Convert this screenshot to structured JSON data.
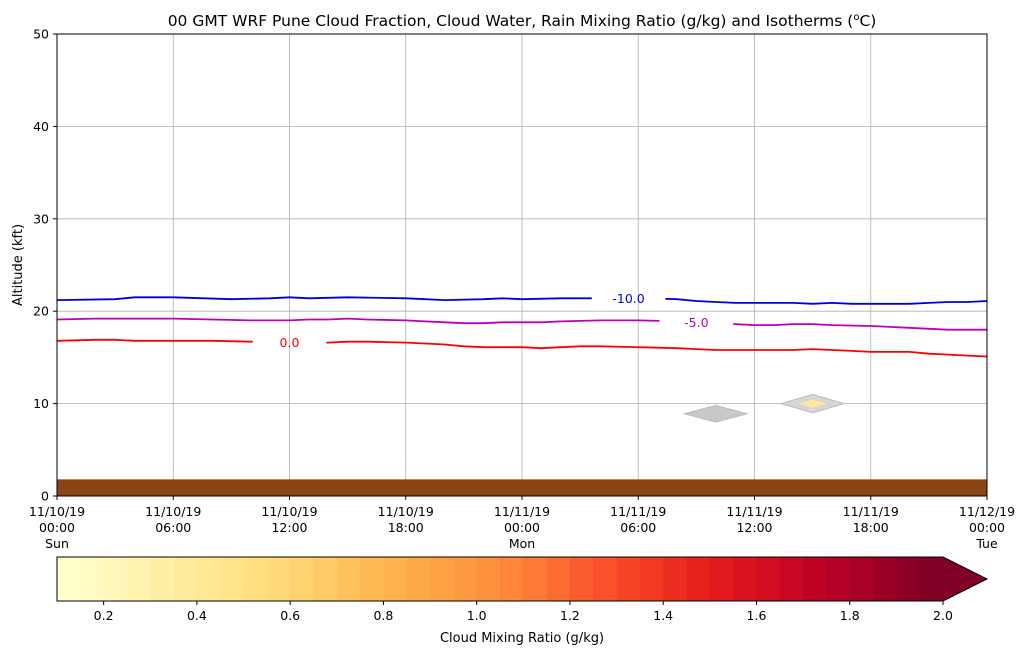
{
  "chart_data": {
    "type": "contour",
    "title": "00 GMT WRF Pune Cloud Fraction, Cloud Water, Rain Mixing Ratio (g/kg) and Isotherms (",
    "title_sup": "o",
    "title_tail": "C)",
    "ylabel": "Altitude (kft)",
    "ylim": [
      0,
      50
    ],
    "yticks": [
      0,
      10,
      20,
      30,
      40,
      50
    ],
    "xlim": [
      0,
      48
    ],
    "x_unit": "hours from 11/10/19 00:00",
    "grid": true,
    "xticks": [
      {
        "x": 0,
        "date": "11/10/19",
        "time": "00:00",
        "day": "Sun"
      },
      {
        "x": 6,
        "date": "11/10/19",
        "time": "06:00",
        "day": ""
      },
      {
        "x": 12,
        "date": "11/10/19",
        "time": "12:00",
        "day": ""
      },
      {
        "x": 18,
        "date": "11/10/19",
        "time": "18:00",
        "day": ""
      },
      {
        "x": 24,
        "date": "11/11/19",
        "time": "00:00",
        "day": "Mon"
      },
      {
        "x": 30,
        "date": "11/11/19",
        "time": "06:00",
        "day": ""
      },
      {
        "x": 36,
        "date": "11/11/19",
        "time": "12:00",
        "day": ""
      },
      {
        "x": 42,
        "date": "11/11/19",
        "time": "18:00",
        "day": ""
      },
      {
        "x": 48,
        "date": "11/12/19",
        "time": "00:00",
        "day": "Tue"
      }
    ],
    "ground": {
      "from": 0,
      "to": 1.8,
      "color": "#8B4513"
    },
    "isotherms": [
      {
        "label": "-10.0",
        "color": "#0000DD",
        "label_x": 29.5,
        "x": [
          0,
          3,
          4,
          6,
          9,
          11,
          12,
          13,
          15,
          18,
          19,
          20,
          22,
          23,
          24,
          26,
          28,
          30,
          32,
          33,
          34,
          35,
          36,
          37,
          38,
          39,
          40,
          41,
          42,
          43,
          44,
          45,
          46,
          47,
          48
        ],
        "y": [
          21.2,
          21.3,
          21.5,
          21.5,
          21.3,
          21.4,
          21.5,
          21.4,
          21.5,
          21.4,
          21.3,
          21.2,
          21.3,
          21.4,
          21.3,
          21.4,
          21.4,
          21.4,
          21.3,
          21.1,
          21.0,
          20.9,
          20.9,
          20.9,
          20.9,
          20.8,
          20.9,
          20.8,
          20.8,
          20.8,
          20.8,
          20.9,
          21.0,
          21.0,
          21.1
        ]
      },
      {
        "label": "-5.0",
        "color": "#BB00BB",
        "label_x": 33,
        "x": [
          0,
          2,
          4,
          6,
          8,
          10,
          12,
          13,
          14,
          15,
          16,
          18,
          19,
          20,
          21,
          22,
          23,
          24,
          25,
          26,
          28,
          30,
          32,
          34,
          35,
          36,
          37,
          38,
          39,
          40,
          42,
          44,
          45,
          46,
          48
        ],
        "y": [
          19.1,
          19.2,
          19.2,
          19.2,
          19.1,
          19.0,
          19.0,
          19.1,
          19.1,
          19.2,
          19.1,
          19.0,
          18.9,
          18.8,
          18.7,
          18.7,
          18.8,
          18.8,
          18.8,
          18.9,
          19.0,
          19.0,
          18.9,
          18.7,
          18.6,
          18.5,
          18.5,
          18.6,
          18.6,
          18.5,
          18.4,
          18.2,
          18.1,
          18.0,
          18.0
        ]
      },
      {
        "label": "0.0",
        "color": "#FF0000",
        "label_x": 12,
        "x": [
          0,
          2,
          3,
          4,
          6,
          8,
          10,
          12,
          14,
          15,
          16,
          18,
          19,
          20,
          21,
          22,
          23,
          24,
          25,
          26,
          27,
          28,
          30,
          32,
          33,
          34,
          35,
          36,
          37,
          38,
          39,
          40,
          41,
          42,
          43,
          44,
          45,
          46,
          47,
          48
        ],
        "y": [
          16.8,
          16.9,
          16.9,
          16.8,
          16.8,
          16.8,
          16.7,
          16.6,
          16.6,
          16.7,
          16.7,
          16.6,
          16.5,
          16.4,
          16.2,
          16.1,
          16.1,
          16.1,
          16.0,
          16.1,
          16.2,
          16.2,
          16.1,
          16.0,
          15.9,
          15.8,
          15.8,
          15.8,
          15.8,
          15.8,
          15.9,
          15.8,
          15.7,
          15.6,
          15.6,
          15.6,
          15.4,
          15.3,
          15.2,
          15.1
        ]
      }
    ],
    "cloud_blobs": [
      {
        "x": 34,
        "y": 8.9,
        "dx": 0.9,
        "dy": 0.9,
        "fill": "#C8C8C8",
        "core": ""
      },
      {
        "x": 39,
        "y": 10.0,
        "dx": 0.9,
        "dy": 1.0,
        "fill": "#D6D6D6",
        "core": "#FFE89A"
      }
    ],
    "colorbar": {
      "label": "Cloud Mixing Ratio (g/kg)",
      "min": 0.1,
      "max": 2.0,
      "extend": "max",
      "ticks": [
        "0.2",
        "0.4",
        "0.6",
        "0.8",
        "1.0",
        "1.2",
        "1.4",
        "1.6",
        "1.8",
        "2.0"
      ],
      "colors_start": "#FFFFCC",
      "colors_stops": [
        "#FFFFCC",
        "#FFEDA0",
        "#FED976",
        "#FEB24C",
        "#FD8D3C",
        "#FC4E2A",
        "#E31A1C",
        "#BD0026",
        "#800026"
      ],
      "extend_color": "#800026"
    }
  }
}
